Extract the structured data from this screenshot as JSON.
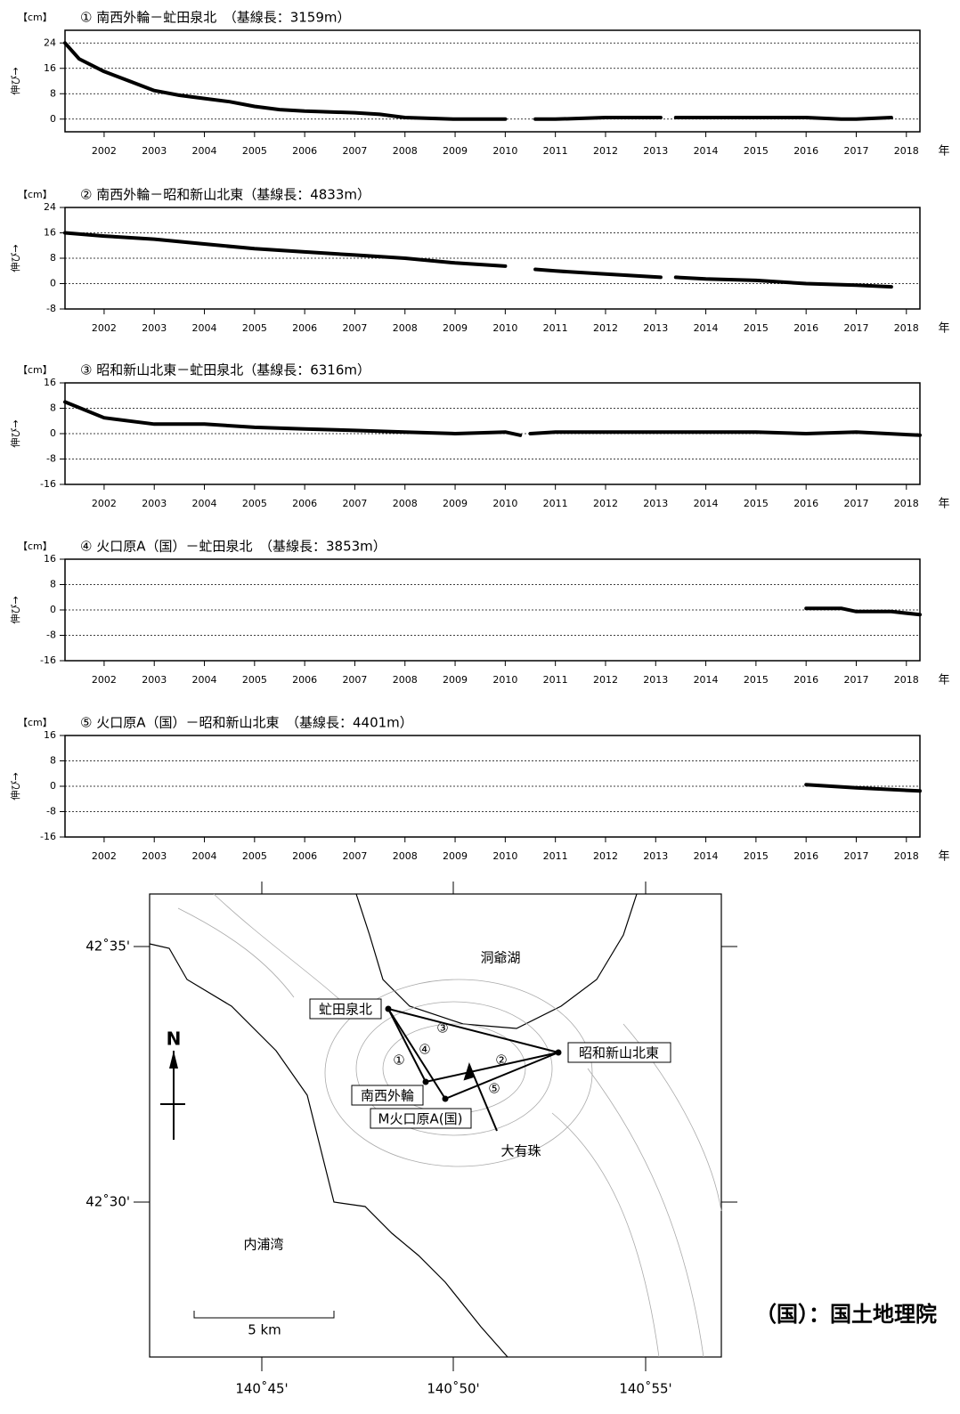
{
  "chart_data": [
    {
      "type": "line",
      "title": "① 南西外輪－虻田泉北　（基線長：3159m）",
      "unit": "【cm】",
      "ylabel": "伸び→",
      "xlabel": "年",
      "x": [
        2001.22,
        2001.5,
        2002,
        2002.5,
        2003,
        2003.5,
        2004,
        2004.5,
        2005,
        2005.5,
        2006,
        2007,
        2007.5,
        2008,
        2009,
        2010,
        2010.45,
        2010.6,
        2011,
        2012,
        2013.1,
        2013.25,
        2013.4,
        2014,
        2015,
        2016,
        2016.7,
        2017,
        2017.7
      ],
      "series": [
        {
          "color": "#000000",
          "values": [
            24,
            19,
            15,
            12,
            9,
            7.5,
            6.5,
            5.5,
            4,
            3,
            2.5,
            2,
            1.5,
            0.5,
            0,
            0,
            null,
            0,
            0,
            0.5,
            0.5,
            null,
            0.5,
            0.5,
            0.5,
            0.5,
            0,
            0,
            0.5
          ]
        }
      ],
      "xlim": [
        2001.22,
        2018.27
      ],
      "xticks": [
        2002,
        2003,
        2004,
        2005,
        2006,
        2007,
        2008,
        2009,
        2010,
        2011,
        2012,
        2013,
        2014,
        2015,
        2016,
        2017,
        2018
      ],
      "ylim": [
        -4,
        28
      ],
      "yticks": [
        0,
        8,
        16,
        24
      ],
      "grid": true
    },
    {
      "type": "line",
      "title": "② 南西外輪－昭和新山北東（基線長：4833m）",
      "unit": "【cm】",
      "ylabel": "伸び→",
      "xlabel": "年",
      "x": [
        2001.22,
        2002,
        2003,
        2004,
        2005,
        2006,
        2007,
        2008,
        2009,
        2010,
        2010.45,
        2010.6,
        2011,
        2012,
        2013.1,
        2013.25,
        2013.4,
        2014,
        2015,
        2016,
        2017,
        2017.7
      ],
      "series": [
        {
          "color": "#000000",
          "values": [
            16,
            15,
            14,
            12.5,
            11,
            10,
            9,
            8,
            6.5,
            5.5,
            null,
            4.5,
            4,
            3,
            2,
            null,
            2,
            1.5,
            1,
            0,
            -0.5,
            -1
          ]
        }
      ],
      "xlim": [
        2001.22,
        2018.27
      ],
      "xticks": [
        2002,
        2003,
        2004,
        2005,
        2006,
        2007,
        2008,
        2009,
        2010,
        2011,
        2012,
        2013,
        2014,
        2015,
        2016,
        2017,
        2018
      ],
      "ylim": [
        -8,
        24
      ],
      "yticks": [
        -8,
        0,
        8,
        16,
        24
      ],
      "grid": true
    },
    {
      "type": "line",
      "title": "③ 昭和新山北東－虻田泉北（基線長：6316m）",
      "unit": "【cm】",
      "ylabel": "伸び→",
      "xlabel": "年",
      "x": [
        2001.22,
        2002,
        2003,
        2004,
        2005,
        2006,
        2007,
        2008,
        2009,
        2010,
        2010.3,
        2010.4,
        2010.5,
        2011,
        2012,
        2013,
        2014,
        2015,
        2016,
        2017,
        2018.27
      ],
      "series": [
        {
          "color": "#000000",
          "values": [
            10,
            5,
            3,
            3,
            2,
            1.5,
            1,
            0.5,
            0,
            0.5,
            -0.5,
            null,
            0,
            0.5,
            0.5,
            0.5,
            0.5,
            0.5,
            0,
            0.5,
            -0.5
          ]
        }
      ],
      "xlim": [
        2001.22,
        2018.27
      ],
      "xticks": [
        2002,
        2003,
        2004,
        2005,
        2006,
        2007,
        2008,
        2009,
        2010,
        2011,
        2012,
        2013,
        2014,
        2015,
        2016,
        2017,
        2018
      ],
      "ylim": [
        -16,
        16
      ],
      "yticks": [
        -16,
        -8,
        0,
        8,
        16
      ],
      "grid": true
    },
    {
      "type": "line",
      "title": "④ 火口原A（国）－虻田泉北　（基線長：3853m）",
      "unit": "【cm】",
      "ylabel": "伸び→",
      "xlabel": "年",
      "x": [
        2016,
        2016.7,
        2017,
        2017.7,
        2018.27
      ],
      "series": [
        {
          "color": "#000000",
          "values": [
            0.5,
            0.5,
            -0.5,
            -0.5,
            -1.5
          ]
        }
      ],
      "xlim": [
        2001.22,
        2018.27
      ],
      "xticks": [
        2002,
        2003,
        2004,
        2005,
        2006,
        2007,
        2008,
        2009,
        2010,
        2011,
        2012,
        2013,
        2014,
        2015,
        2016,
        2017,
        2018
      ],
      "ylim": [
        -16,
        16
      ],
      "yticks": [
        -16,
        -8,
        0,
        8,
        16
      ],
      "grid": true
    },
    {
      "type": "line",
      "title": "⑤ 火口原A（国）－昭和新山北東　（基線長：4401m）",
      "unit": "【cm】",
      "ylabel": "伸び→",
      "xlabel": "年",
      "x": [
        2016,
        2017,
        2018.27
      ],
      "series": [
        {
          "color": "#000000",
          "values": [
            0.5,
            -0.5,
            -1.5
          ]
        }
      ],
      "xlim": [
        2001.22,
        2018.27
      ],
      "xticks": [
        2002,
        2003,
        2004,
        2005,
        2006,
        2007,
        2008,
        2009,
        2010,
        2011,
        2012,
        2013,
        2014,
        2015,
        2016,
        2017,
        2018
      ],
      "ylim": [
        -16,
        16
      ],
      "yticks": [
        -16,
        -8,
        0,
        8,
        16
      ],
      "grid": true
    }
  ],
  "map": {
    "lake": "洞爺湖",
    "bay": "内浦湾",
    "stations": [
      "虻田泉北",
      "昭和新山北東",
      "南西外輪",
      "M火口原A(国)"
    ],
    "peak": "大有珠",
    "baselines": [
      "①",
      "②",
      "③",
      "④",
      "⑤"
    ],
    "north": "N",
    "scale": "5 km",
    "lat_labels": [
      "42˚35'",
      "42˚30'"
    ],
    "lon_labels": [
      "140˚45'",
      "140˚50'",
      "140˚55'"
    ],
    "note": "（国）：国土地理院"
  }
}
